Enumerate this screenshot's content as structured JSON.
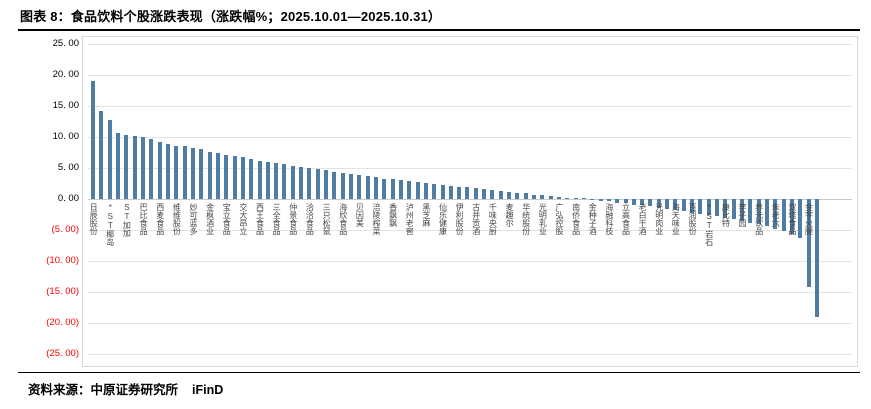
{
  "header": {
    "title": "图表 8：食品饮料个股涨跌表现（涨跌幅%；2025.10.01—2025.10.31）"
  },
  "footer": {
    "source_label": "资料来源：中原证券研究所",
    "provider": "iFinD"
  },
  "chart_data": {
    "type": "bar",
    "title": "食品饮料个股涨跌表现",
    "ylabel": "涨跌幅%",
    "xlabel": "",
    "ylim": [
      -25,
      25
    ],
    "ytick_step": 5,
    "grid": true,
    "legend": "none",
    "bar_color": "#4f7ca3",
    "negative_tick_color": "#ff0000",
    "yticks": [
      {
        "label": "25. 00",
        "value": 25
      },
      {
        "label": "20. 00",
        "value": 20
      },
      {
        "label": "15. 00",
        "value": 15
      },
      {
        "label": "10. 00",
        "value": 10
      },
      {
        "label": "5. 00",
        "value": 5
      },
      {
        "label": "0. 00",
        "value": 0
      },
      {
        "label": "(5. 00)",
        "value": -5
      },
      {
        "label": "(10. 00)",
        "value": -10
      },
      {
        "label": "(15. 00)",
        "value": -15
      },
      {
        "label": "(20. 00)",
        "value": -20
      },
      {
        "label": "(25. 00)",
        "value": -25
      }
    ],
    "points": [
      {
        "label": "日辰股份",
        "value": 19.0
      },
      {
        "label": "",
        "value": 14.2
      },
      {
        "label": "*ST椰岛",
        "value": 12.7
      },
      {
        "label": "",
        "value": 10.6
      },
      {
        "label": "ST加加",
        "value": 10.3
      },
      {
        "label": "",
        "value": 10.1
      },
      {
        "label": "巴比食品",
        "value": 10.0
      },
      {
        "label": "",
        "value": 9.6
      },
      {
        "label": "西麦食品",
        "value": 9.2
      },
      {
        "label": "",
        "value": 8.8
      },
      {
        "label": "维维股份",
        "value": 8.6
      },
      {
        "label": "",
        "value": 8.5
      },
      {
        "label": "妙可蓝多",
        "value": 8.2
      },
      {
        "label": "",
        "value": 8.0
      },
      {
        "label": "金枫酒业",
        "value": 7.6
      },
      {
        "label": "",
        "value": 7.4
      },
      {
        "label": "宝立食品",
        "value": 7.1
      },
      {
        "label": "",
        "value": 6.9
      },
      {
        "label": "交大昂立",
        "value": 6.7
      },
      {
        "label": "",
        "value": 6.4
      },
      {
        "label": "西王食品",
        "value": 6.2
      },
      {
        "label": "",
        "value": 6.0
      },
      {
        "label": "三全食品",
        "value": 5.8
      },
      {
        "label": "",
        "value": 5.6
      },
      {
        "label": "仲景食品",
        "value": 5.4
      },
      {
        "label": "",
        "value": 5.2
      },
      {
        "label": "洽洽食品",
        "value": 5.0
      },
      {
        "label": "",
        "value": 4.8
      },
      {
        "label": "三只松鼠",
        "value": 4.6
      },
      {
        "label": "",
        "value": 4.4
      },
      {
        "label": "海欣食品",
        "value": 4.2
      },
      {
        "label": "",
        "value": 4.0
      },
      {
        "label": "贝因美",
        "value": 3.8
      },
      {
        "label": "",
        "value": 3.7
      },
      {
        "label": "涪陵榨菜",
        "value": 3.5
      },
      {
        "label": "",
        "value": 3.3
      },
      {
        "label": "香飘飘",
        "value": 3.2
      },
      {
        "label": "",
        "value": 3.0
      },
      {
        "label": "泸州老窖",
        "value": 2.9
      },
      {
        "label": "",
        "value": 2.7
      },
      {
        "label": "黑芝麻",
        "value": 2.6
      },
      {
        "label": "",
        "value": 2.4
      },
      {
        "label": "仙乐健康",
        "value": 2.3
      },
      {
        "label": "",
        "value": 2.1
      },
      {
        "label": "伊利股份",
        "value": 2.0
      },
      {
        "label": "",
        "value": 1.9
      },
      {
        "label": "古井贡酒",
        "value": 1.7
      },
      {
        "label": "",
        "value": 1.6
      },
      {
        "label": "千味央厨",
        "value": 1.4
      },
      {
        "label": "",
        "value": 1.3
      },
      {
        "label": "麦趣尔",
        "value": 1.1
      },
      {
        "label": "",
        "value": 1.0
      },
      {
        "label": "华统股份",
        "value": 0.9
      },
      {
        "label": "",
        "value": 0.7
      },
      {
        "label": "光明乳业",
        "value": 0.6
      },
      {
        "label": "",
        "value": 0.5
      },
      {
        "label": "广弘控股",
        "value": 0.4
      },
      {
        "label": "",
        "value": 0.2
      },
      {
        "label": "南侨食品",
        "value": 0.1
      },
      {
        "label": "",
        "value": 0.0
      },
      {
        "label": "金种子酒",
        "value": -0.1
      },
      {
        "label": "",
        "value": -0.3
      },
      {
        "label": "海融科技",
        "value": -0.4
      },
      {
        "label": "",
        "value": -0.6
      },
      {
        "label": "立高食品",
        "value": -0.7
      },
      {
        "label": "",
        "value": -0.9
      },
      {
        "label": "老白干酒",
        "value": -1.0
      },
      {
        "label": "",
        "value": -1.2
      },
      {
        "label": "光明肉业",
        "value": -1.4
      },
      {
        "label": "",
        "value": -1.6
      },
      {
        "label": "海天味业",
        "value": -1.8
      },
      {
        "label": "",
        "value": -2.0
      },
      {
        "label": "百润股份",
        "value": -2.2
      },
      {
        "label": "",
        "value": -2.4
      },
      {
        "label": "*ST岩石",
        "value": -2.6
      },
      {
        "label": "",
        "value": -2.8
      },
      {
        "label": "康比特",
        "value": -3.0
      },
      {
        "label": "",
        "value": -3.2
      },
      {
        "label": "李子园",
        "value": -3.5
      },
      {
        "label": "",
        "value": -3.8
      },
      {
        "label": "养元饮品",
        "value": -4.1
      },
      {
        "label": "",
        "value": -4.4
      },
      {
        "label": "朱老六",
        "value": -4.8
      },
      {
        "label": "",
        "value": -5.2
      },
      {
        "label": "双塔食品",
        "value": -5.7
      },
      {
        "label": "",
        "value": -6.3
      },
      {
        "label": "金字火腿",
        "value": -14.2
      },
      {
        "label": "",
        "value": -19.0
      }
    ]
  }
}
